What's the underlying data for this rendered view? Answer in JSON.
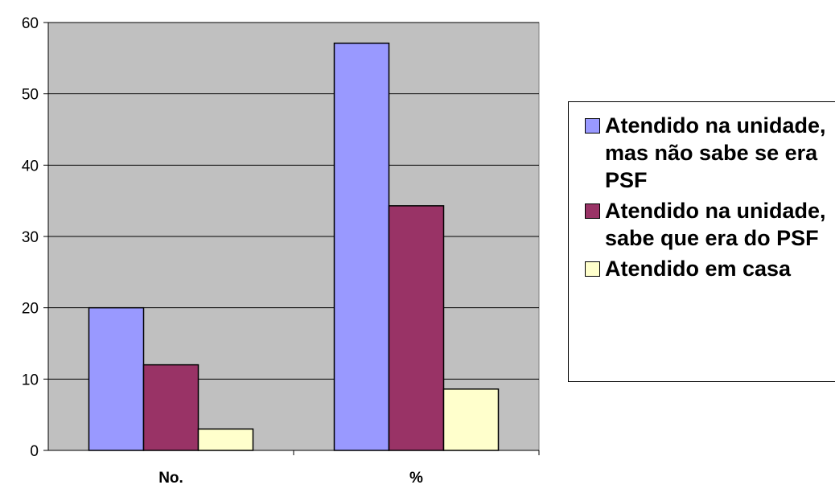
{
  "chart_data": {
    "type": "bar",
    "categories": [
      "No.",
      "%"
    ],
    "series": [
      {
        "name": "Atendido na unidade, mas não sabe se era PSF",
        "values": [
          20,
          57.1
        ],
        "color": "#9999ff"
      },
      {
        "name": "Atendido na unidade, sabe que era do PSF",
        "values": [
          12,
          34.3
        ],
        "color": "#993366"
      },
      {
        "name": "Atendido em casa",
        "values": [
          3,
          8.6
        ],
        "color": "#ffffcc"
      }
    ],
    "ylim": [
      0,
      60
    ],
    "yticks": [
      0,
      10,
      20,
      30,
      40,
      50,
      60
    ],
    "grid": true,
    "plot_background": "#c0c0c0",
    "legend_position": "right"
  }
}
